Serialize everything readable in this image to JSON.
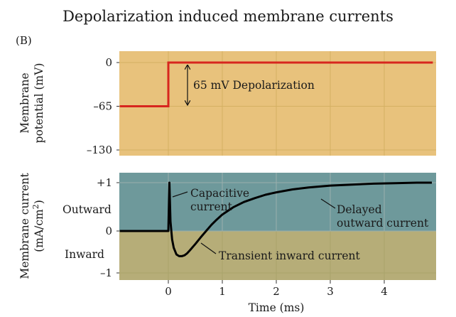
{
  "title": "Depolarization induced membrane currents",
  "panel_label": "(B)",
  "colors": {
    "voltage_panel_bg": "#e8c27c",
    "outward_bg": "#6e999b",
    "inward_bg": "#b6ad78",
    "voltage_trace": "#d7261e",
    "current_trace": "#000000"
  },
  "chart_data": [
    {
      "type": "line",
      "ylabel_line1": "Membrane",
      "ylabel_line2": "potential (mV)",
      "x_range": [
        -0.9,
        4.9
      ],
      "ylim": [
        -130,
        0
      ],
      "y_ticks": [
        0,
        -65,
        -130
      ],
      "y_tick_labels": [
        "0",
        "–65",
        "–130"
      ],
      "grid": true,
      "series": [
        {
          "x": [
            -0.9,
            0,
            0,
            4.9
          ],
          "y": [
            -65,
            -65,
            0,
            0
          ]
        }
      ],
      "annotation": "65 mV Depolarization"
    },
    {
      "type": "line",
      "ylabel_line1": "Membrane current",
      "ylabel_line2": "(mA/cm",
      "ylabel_sup": "2",
      "ylabel_tail": ")",
      "xlabel": "Time (ms)",
      "x_ticks": [
        0,
        1,
        2,
        3,
        4
      ],
      "x_tick_labels": [
        "0",
        "1",
        "2",
        "3",
        "4"
      ],
      "x_range": [
        -0.9,
        4.9
      ],
      "ylim": [
        -1.2,
        1.2
      ],
      "y_ticks": [
        1,
        0,
        -1
      ],
      "y_tick_labels": [
        "+1",
        "0",
        "–1"
      ],
      "region_labels": {
        "outward": "Outward",
        "inward": "Inward"
      },
      "grid": true,
      "series": [
        {
          "x": [
            -0.9,
            0,
            0.02,
            0.04,
            0.07,
            0.1,
            0.15,
            0.2,
            0.25,
            0.3,
            0.35,
            0.4,
            0.5,
            0.6,
            0.7,
            0.8,
            0.9,
            1.0,
            1.2,
            1.4,
            1.6,
            1.8,
            2.0,
            2.3,
            2.6,
            3.0,
            3.4,
            3.8,
            4.2,
            4.6,
            4.9
          ],
          "y": [
            0,
            0,
            1.0,
            0.2,
            -0.2,
            -0.4,
            -0.56,
            -0.6,
            -0.6,
            -0.58,
            -0.53,
            -0.46,
            -0.31,
            -0.15,
            0.0,
            0.13,
            0.24,
            0.34,
            0.49,
            0.6,
            0.68,
            0.75,
            0.8,
            0.86,
            0.9,
            0.94,
            0.96,
            0.98,
            0.99,
            1.0,
            1.0
          ]
        }
      ],
      "annotations": {
        "capacitive_line1": "Capacitive",
        "capacitive_line2": "current",
        "delayed_line1": "Delayed",
        "delayed_line2": "outward current",
        "transient": "Transient inward current"
      }
    }
  ]
}
